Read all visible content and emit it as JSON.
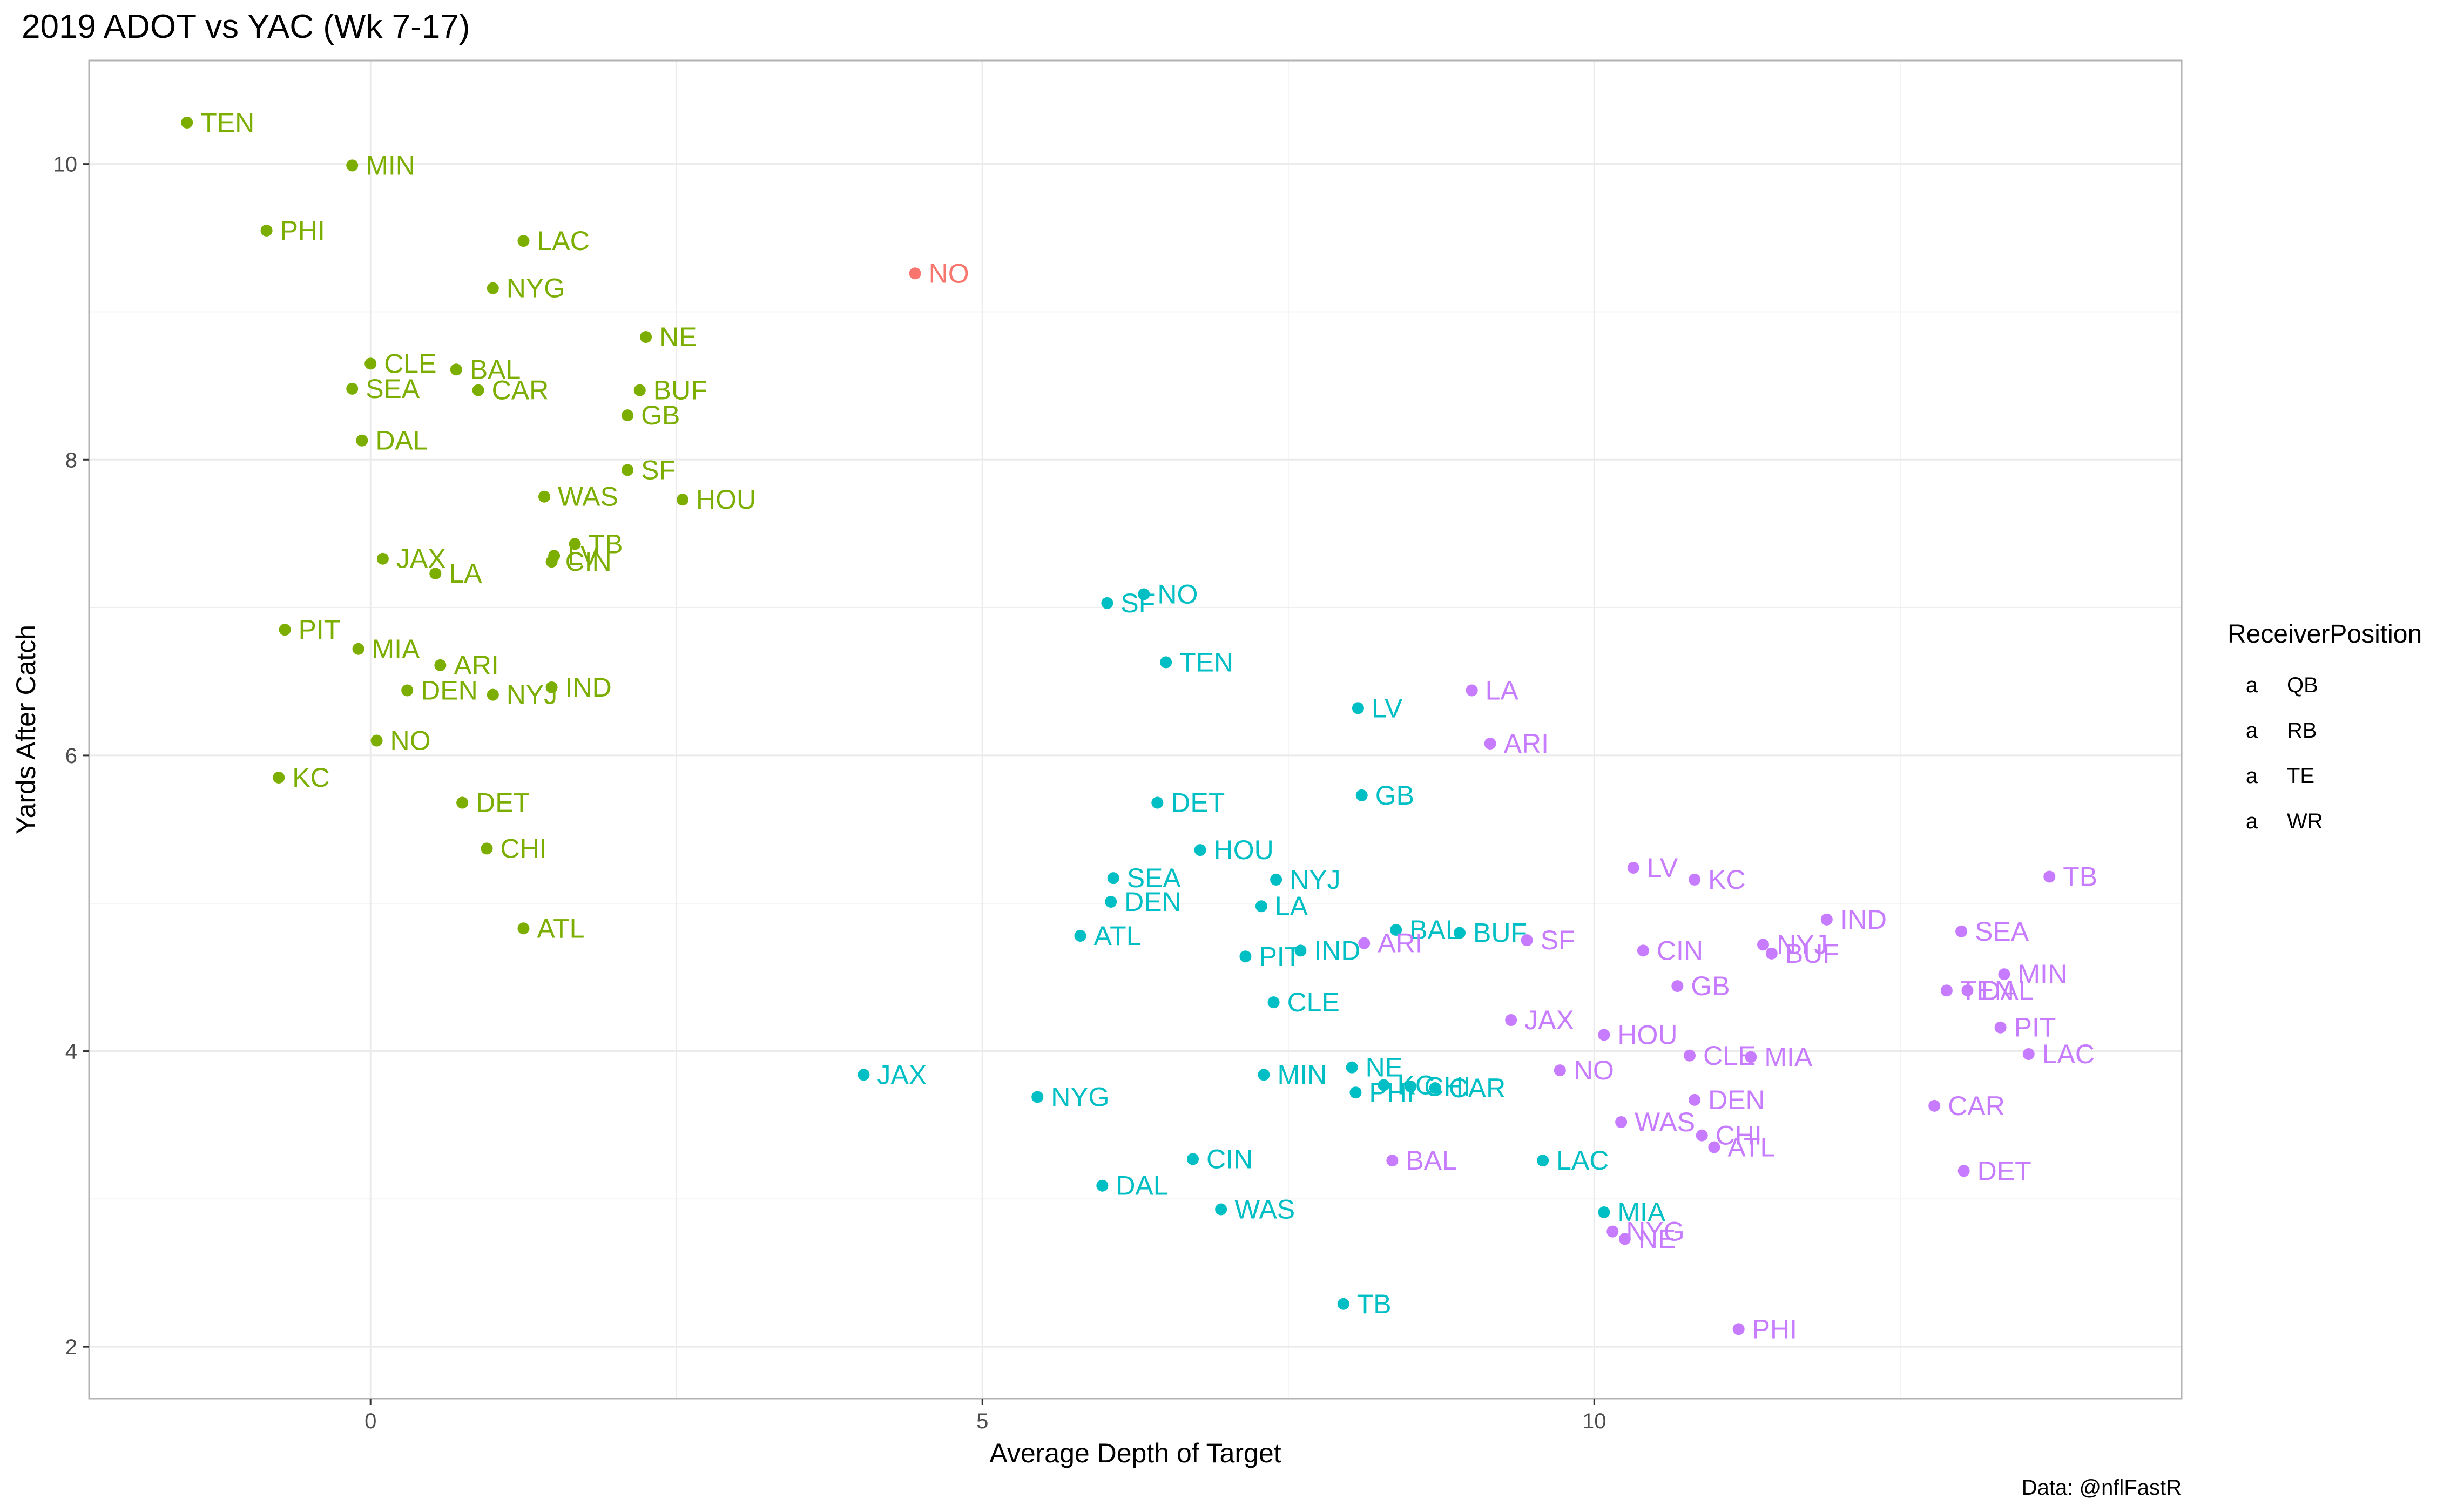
{
  "chart_data": {
    "type": "scatter",
    "title": "2019 ADOT vs YAC (Wk 7-17)",
    "xlabel": "Average Depth of Target",
    "ylabel": "Yards After Catch",
    "caption": "Data: @nflFastR",
    "xlim": [
      -2.3,
      14.8
    ],
    "ylim": [
      1.65,
      10.7
    ],
    "x_ticks": [
      0,
      5,
      10
    ],
    "y_ticks": [
      2,
      4,
      6,
      8,
      10
    ],
    "grid": true,
    "legend_title": "ReceiverPosition",
    "legend_position": "right",
    "legend_glyph": "a",
    "series": [
      {
        "name": "QB",
        "color": "#F8766D",
        "points": [
          {
            "team": "NO",
            "x": 4.45,
            "y": 9.26
          }
        ]
      },
      {
        "name": "RB",
        "color": "#7CAE00",
        "points": [
          {
            "team": "TEN",
            "x": -1.5,
            "y": 10.28
          },
          {
            "team": "MIN",
            "x": -0.15,
            "y": 9.99
          },
          {
            "team": "PHI",
            "x": -0.85,
            "y": 9.55
          },
          {
            "team": "LAC",
            "x": 1.25,
            "y": 9.48
          },
          {
            "team": "NYG",
            "x": 1.0,
            "y": 9.16
          },
          {
            "team": "NE",
            "x": 2.25,
            "y": 8.83
          },
          {
            "team": "CLE",
            "x": 0.0,
            "y": 8.65
          },
          {
            "team": "BAL",
            "x": 0.7,
            "y": 8.61
          },
          {
            "team": "SEA",
            "x": -0.15,
            "y": 8.48
          },
          {
            "team": "CAR",
            "x": 0.88,
            "y": 8.47
          },
          {
            "team": "BUF",
            "x": 2.2,
            "y": 8.47
          },
          {
            "team": "GB",
            "x": 2.1,
            "y": 8.3
          },
          {
            "team": "DAL",
            "x": -0.07,
            "y": 8.13
          },
          {
            "team": "SF",
            "x": 2.1,
            "y": 7.93
          },
          {
            "team": "WAS",
            "x": 1.42,
            "y": 7.75
          },
          {
            "team": "HOU",
            "x": 2.55,
            "y": 7.73
          },
          {
            "team": "TB",
            "x": 1.67,
            "y": 7.43
          },
          {
            "team": "LV",
            "x": 1.5,
            "y": 7.35
          },
          {
            "team": "CIN",
            "x": 1.48,
            "y": 7.31
          },
          {
            "team": "JAX",
            "x": 0.1,
            "y": 7.33
          },
          {
            "team": "LA",
            "x": 0.53,
            "y": 7.23
          },
          {
            "team": "PIT",
            "x": -0.7,
            "y": 6.85
          },
          {
            "team": "MIA",
            "x": -0.1,
            "y": 6.72
          },
          {
            "team": "ARI",
            "x": 0.57,
            "y": 6.61
          },
          {
            "team": "DEN",
            "x": 0.3,
            "y": 6.44
          },
          {
            "team": "IND",
            "x": 1.48,
            "y": 6.46
          },
          {
            "team": "NYJ",
            "x": 1.0,
            "y": 6.41
          },
          {
            "team": "NO",
            "x": 0.05,
            "y": 6.1
          },
          {
            "team": "KC",
            "x": -0.75,
            "y": 5.85
          },
          {
            "team": "DET",
            "x": 0.75,
            "y": 5.68
          },
          {
            "team": "CHI",
            "x": 0.95,
            "y": 5.37
          },
          {
            "team": "ATL",
            "x": 1.25,
            "y": 4.83
          }
        ]
      },
      {
        "name": "TE",
        "color": "#00BFC4",
        "points": [
          {
            "team": "NO",
            "x": 6.32,
            "y": 7.09
          },
          {
            "team": "SF",
            "x": 6.02,
            "y": 7.03
          },
          {
            "team": "TEN",
            "x": 6.5,
            "y": 6.63
          },
          {
            "team": "LV",
            "x": 8.07,
            "y": 6.32
          },
          {
            "team": "GB",
            "x": 8.1,
            "y": 5.73
          },
          {
            "team": "DET",
            "x": 6.43,
            "y": 5.68
          },
          {
            "team": "HOU",
            "x": 6.78,
            "y": 5.36
          },
          {
            "team": "SEA",
            "x": 6.07,
            "y": 5.17
          },
          {
            "team": "NYJ",
            "x": 7.4,
            "y": 5.16
          },
          {
            "team": "DEN",
            "x": 6.05,
            "y": 5.01
          },
          {
            "team": "LA",
            "x": 7.28,
            "y": 4.98
          },
          {
            "team": "ATL",
            "x": 5.8,
            "y": 4.78
          },
          {
            "team": "BAL",
            "x": 8.38,
            "y": 4.82
          },
          {
            "team": "BUF",
            "x": 8.9,
            "y": 4.8
          },
          {
            "team": "PIT",
            "x": 7.15,
            "y": 4.64
          },
          {
            "team": "IND",
            "x": 7.6,
            "y": 4.68
          },
          {
            "team": "CLE",
            "x": 7.38,
            "y": 4.33
          },
          {
            "team": "JAX",
            "x": 4.03,
            "y": 3.84
          },
          {
            "team": "NE",
            "x": 8.02,
            "y": 3.89
          },
          {
            "team": "MIN",
            "x": 7.3,
            "y": 3.84
          },
          {
            "team": "KC",
            "x": 8.28,
            "y": 3.77
          },
          {
            "team": "CHI",
            "x": 8.5,
            "y": 3.76
          },
          {
            "team": "CAR",
            "x": 8.7,
            "y": 3.75
          },
          {
            "team": "PHI",
            "x": 8.05,
            "y": 3.72
          },
          {
            "team": "NYG",
            "x": 5.45,
            "y": 3.69
          },
          {
            "team": "CIN",
            "x": 6.72,
            "y": 3.27
          },
          {
            "team": "LAC",
            "x": 9.58,
            "y": 3.26
          },
          {
            "team": "DAL",
            "x": 5.98,
            "y": 3.09
          },
          {
            "team": "WAS",
            "x": 6.95,
            "y": 2.93
          },
          {
            "team": "MIA",
            "x": 10.08,
            "y": 2.91
          },
          {
            "team": "TB",
            "x": 7.95,
            "y": 2.29
          }
        ]
      },
      {
        "name": "WR",
        "color": "#C77CFF",
        "points": [
          {
            "team": "LA",
            "x": 9.0,
            "y": 6.44
          },
          {
            "team": "ARI",
            "x": 9.15,
            "y": 6.08
          },
          {
            "team": "LV",
            "x": 10.32,
            "y": 5.24
          },
          {
            "team": "KC",
            "x": 10.82,
            "y": 5.16
          },
          {
            "team": "TB",
            "x": 13.72,
            "y": 5.18
          },
          {
            "team": "IND",
            "x": 11.9,
            "y": 4.89
          },
          {
            "team": "SEA",
            "x": 13.0,
            "y": 4.81
          },
          {
            "team": "ARI",
            "x": 8.12,
            "y": 4.73
          },
          {
            "team": "SF",
            "x": 9.45,
            "y": 4.75
          },
          {
            "team": "CIN",
            "x": 10.4,
            "y": 4.68
          },
          {
            "team": "NYJ",
            "x": 11.38,
            "y": 4.72
          },
          {
            "team": "BUF",
            "x": 11.45,
            "y": 4.66
          },
          {
            "team": "MIN",
            "x": 13.35,
            "y": 4.52
          },
          {
            "team": "GB",
            "x": 10.68,
            "y": 4.44
          },
          {
            "team": "TEN",
            "x": 12.88,
            "y": 4.41
          },
          {
            "team": "DAL",
            "x": 13.05,
            "y": 4.41
          },
          {
            "team": "JAX",
            "x": 9.32,
            "y": 4.21
          },
          {
            "team": "PIT",
            "x": 13.32,
            "y": 4.16
          },
          {
            "team": "HOU",
            "x": 10.08,
            "y": 4.11
          },
          {
            "team": "LAC",
            "x": 13.55,
            "y": 3.98
          },
          {
            "team": "CLE",
            "x": 10.78,
            "y": 3.97
          },
          {
            "team": "MIA",
            "x": 11.28,
            "y": 3.96
          },
          {
            "team": "NO",
            "x": 9.72,
            "y": 3.87
          },
          {
            "team": "DEN",
            "x": 10.82,
            "y": 3.67
          },
          {
            "team": "CAR",
            "x": 12.78,
            "y": 3.63
          },
          {
            "team": "WAS",
            "x": 10.22,
            "y": 3.52
          },
          {
            "team": "CHI",
            "x": 10.88,
            "y": 3.43
          },
          {
            "team": "ATL",
            "x": 10.98,
            "y": 3.35
          },
          {
            "team": "BAL",
            "x": 8.35,
            "y": 3.26
          },
          {
            "team": "DET",
            "x": 13.02,
            "y": 3.19
          },
          {
            "team": "NYG",
            "x": 10.15,
            "y": 2.78
          },
          {
            "team": "NE",
            "x": 10.25,
            "y": 2.73
          },
          {
            "team": "PHI",
            "x": 11.18,
            "y": 2.12
          }
        ]
      }
    ]
  }
}
